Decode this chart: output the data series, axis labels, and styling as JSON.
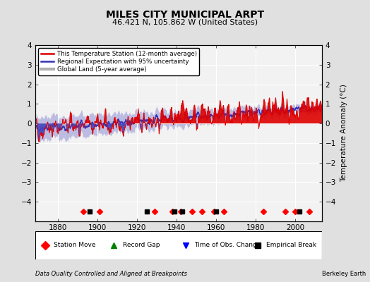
{
  "title": "MILES CITY MUNICIPAL ARPT",
  "subtitle": "46.421 N, 105.862 W (United States)",
  "ylabel": "Temperature Anomaly (°C)",
  "footer_left": "Data Quality Controlled and Aligned at Breakpoints",
  "footer_right": "Berkeley Earth",
  "year_start": 1869,
  "year_end": 2013,
  "ylim": [
    -5,
    4
  ],
  "yticks": [
    -4,
    -3,
    -2,
    -1,
    0,
    1,
    2,
    3,
    4
  ],
  "xticks": [
    1880,
    1900,
    1920,
    1940,
    1960,
    1980,
    2000
  ],
  "bg_color": "#e0e0e0",
  "plot_bg_color": "#f2f2f2",
  "station_color": "#dd0000",
  "regional_color": "#3333bb",
  "regional_fill_color": "#aaaadd",
  "global_color": "#b0b0b0",
  "legend_items": [
    {
      "label": "This Temperature Station (12-month average)",
      "color": "#dd0000",
      "lw": 1.5
    },
    {
      "label": "Regional Expectation with 95% uncertainty",
      "color": "#3333bb",
      "lw": 1.5
    },
    {
      "label": "Global Land (5-year average)",
      "color": "#b0b0b0",
      "lw": 3
    }
  ],
  "station_markers": [
    1893,
    1901,
    1929,
    1938,
    1942,
    1948,
    1953,
    1959,
    1964,
    1984,
    1995,
    2000,
    2007
  ],
  "empirical_breaks": [
    1896,
    1925,
    1939,
    1943,
    1960,
    2002
  ],
  "record_gaps": [],
  "obs_changes": []
}
